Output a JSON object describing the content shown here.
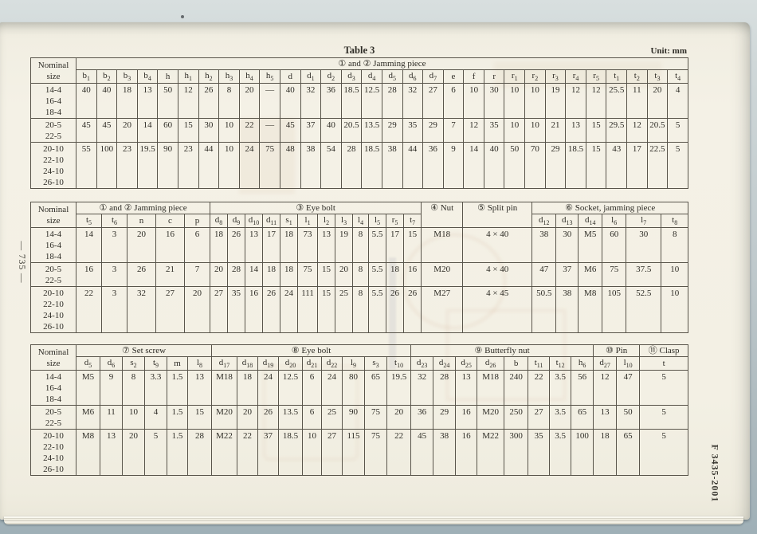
{
  "page": {
    "left_margin_text": "— 735 —",
    "right_margin_text": "F 3435-2001",
    "caption": "Table 3",
    "unit": "Unit: mm"
  },
  "nominal_label": [
    "Nominal",
    "size"
  ],
  "row_groups_sizes": [
    [
      "14-4",
      "16-4",
      "18-4"
    ],
    [
      "20-5",
      "22-5"
    ],
    [
      "20-10",
      "22-10",
      "24-10",
      "26-10"
    ]
  ],
  "tables": [
    {
      "id": "table1",
      "groups": [
        {
          "label": "① and ② Jamming piece",
          "cols": [
            "b_1",
            "b_2",
            "b_3",
            "b_4",
            "h",
            "h_1",
            "h_2",
            "h_3",
            "h_4",
            "h_5",
            "d",
            "d_1",
            "d_2",
            "d_3",
            "d_4",
            "d_5",
            "d_6",
            "d_7",
            "e",
            "f",
            "r",
            "r_1",
            "r_2",
            "r_3",
            "r_4",
            "r_5",
            "t_1",
            "t_2",
            "t_3",
            "t_4"
          ]
        }
      ],
      "rows": [
        [
          "40",
          "40",
          "18",
          "13",
          "50",
          "12",
          "26",
          "8",
          "20",
          "—",
          "40",
          "32",
          "36",
          "18.5",
          "12.5",
          "28",
          "32",
          "27",
          "6",
          "10",
          "30",
          "10",
          "10",
          "19",
          "12",
          "12",
          "25.5",
          "11",
          "20",
          "4"
        ],
        [
          "45",
          "45",
          "20",
          "14",
          "60",
          "15",
          "30",
          "10",
          "22",
          "—",
          "45",
          "37",
          "40",
          "20.5",
          "13.5",
          "29",
          "35",
          "29",
          "7",
          "12",
          "35",
          "10",
          "10",
          "21",
          "13",
          "15",
          "29.5",
          "12",
          "20.5",
          "5"
        ],
        [
          "55",
          "100",
          "23",
          "19.5",
          "90",
          "23",
          "44",
          "10",
          "24",
          "75",
          "48",
          "38",
          "54",
          "28",
          "18.5",
          "38",
          "44",
          "36",
          "9",
          "14",
          "40",
          "50",
          "70",
          "29",
          "18.5",
          "15",
          "43",
          "17",
          "22.5",
          "5"
        ]
      ]
    },
    {
      "id": "table2",
      "groups": [
        {
          "label": "① and ② Jamming piece",
          "cols": [
            "t_5",
            "t_6",
            "n",
            "c",
            "p"
          ]
        },
        {
          "label": "③ Eye bolt",
          "cols": [
            "d_8",
            "d_9",
            "d_10",
            "d_11",
            "s_1",
            "l_1",
            "l_2",
            "l_3",
            "l_4",
            "l_5",
            "r_5",
            "t_7"
          ]
        },
        {
          "label": "④ Nut",
          "cols": null
        },
        {
          "label": "⑤ Split pin",
          "cols": null
        },
        {
          "label": "⑥ Socket, jamming piece",
          "cols": [
            "d_12",
            "d_13",
            "d_14",
            "l_6",
            "l_7",
            "t_8"
          ]
        }
      ],
      "rows": [
        [
          "14",
          "3",
          "20",
          "16",
          "6",
          "18",
          "26",
          "13",
          "17",
          "18",
          "73",
          "13",
          "19",
          "8",
          "5.5",
          "17",
          "15",
          "M18",
          "4 × 40",
          "38",
          "30",
          "M5",
          "60",
          "30",
          "8"
        ],
        [
          "16",
          "3",
          "26",
          "21",
          "7",
          "20",
          "28",
          "14",
          "18",
          "18",
          "75",
          "15",
          "20",
          "8",
          "5.5",
          "18",
          "16",
          "M20",
          "4 × 40",
          "47",
          "37",
          "M6",
          "75",
          "37.5",
          "10"
        ],
        [
          "22",
          "3",
          "32",
          "27",
          "20",
          "27",
          "35",
          "16",
          "26",
          "24",
          "111",
          "15",
          "25",
          "8",
          "5.5",
          "26",
          "26",
          "M27",
          "4 × 45",
          "50.5",
          "38",
          "M8",
          "105",
          "52.5",
          "10"
        ]
      ]
    },
    {
      "id": "table3",
      "groups": [
        {
          "label": "⑦ Set screw",
          "cols": [
            "d_5",
            "d_6",
            "s_2",
            "t_9",
            "m",
            "l_8"
          ]
        },
        {
          "label": "⑧ Eye bolt",
          "cols": [
            "d_17",
            "d_18",
            "d_19",
            "d_20",
            "d_21",
            "d_22",
            "l_9",
            "s_3",
            "t_10"
          ]
        },
        {
          "label": "⑨ Butterfly nut",
          "cols": [
            "d_23",
            "d_24",
            "d_25",
            "d_26",
            "b",
            "t_11",
            "t_12",
            "h_6"
          ]
        },
        {
          "label": "⑩ Pin",
          "cols": [
            "d_27",
            "l_10"
          ]
        },
        {
          "label": "⑪ Clasp",
          "cols": [
            "t"
          ]
        }
      ],
      "rows": [
        [
          "M5",
          "9",
          "8",
          "3.3",
          "1.5",
          "13",
          "M18",
          "18",
          "24",
          "12.5",
          "6",
          "24",
          "80",
          "65",
          "19.5",
          "32",
          "28",
          "13",
          "M18",
          "240",
          "22",
          "3.5",
          "56",
          "12",
          "47",
          "5"
        ],
        [
          "M6",
          "11",
          "10",
          "4",
          "1.5",
          "15",
          "M20",
          "20",
          "26",
          "13.5",
          "6",
          "25",
          "90",
          "75",
          "20",
          "36",
          "29",
          "16",
          "M20",
          "250",
          "27",
          "3.5",
          "65",
          "13",
          "50",
          "5"
        ],
        [
          "M8",
          "13",
          "20",
          "5",
          "1.5",
          "28",
          "M22",
          "22",
          "37",
          "18.5",
          "10",
          "27",
          "115",
          "75",
          "22",
          "45",
          "38",
          "16",
          "M22",
          "300",
          "35",
          "3.5",
          "100",
          "18",
          "65",
          "5"
        ]
      ]
    }
  ]
}
